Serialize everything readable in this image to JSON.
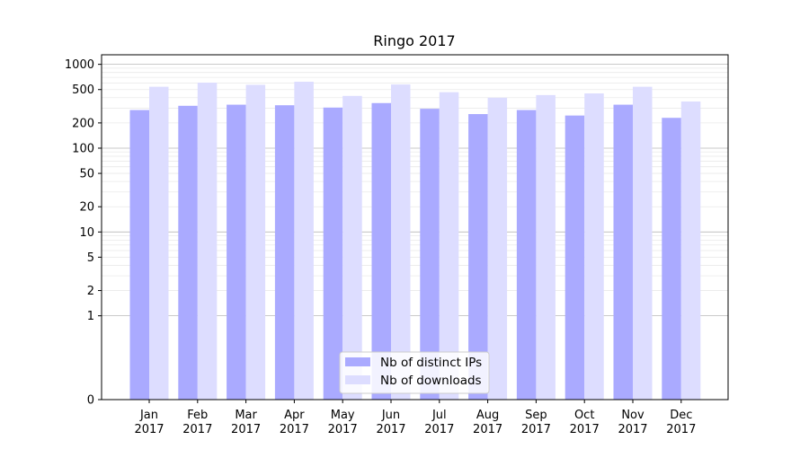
{
  "chart_data": {
    "type": "bar",
    "title": "Ringo 2017",
    "xlabel": "",
    "ylabel": "",
    "y_scale": "symlog",
    "ylim": [
      0,
      1300
    ],
    "y_ticks": [
      0,
      1,
      2,
      5,
      10,
      20,
      50,
      100,
      200,
      500,
      1000
    ],
    "y_tick_labels": [
      "0",
      "1",
      "2",
      "5",
      "10",
      "20",
      "50",
      "100",
      "200",
      "500",
      "1000"
    ],
    "grid": true,
    "legend_position": "bottom-center",
    "categories": [
      "Jan\n2017",
      "Feb\n2017",
      "Mar\n2017",
      "Apr\n2017",
      "May\n2017",
      "Jun\n2017",
      "Jul\n2017",
      "Aug\n2017",
      "Sep\n2017",
      "Oct\n2017",
      "Nov\n2017",
      "Dec\n2017"
    ],
    "category_lines": [
      [
        "Jan",
        "2017"
      ],
      [
        "Feb",
        "2017"
      ],
      [
        "Mar",
        "2017"
      ],
      [
        "Apr",
        "2017"
      ],
      [
        "May",
        "2017"
      ],
      [
        "Jun",
        "2017"
      ],
      [
        "Jul",
        "2017"
      ],
      [
        "Aug",
        "2017"
      ],
      [
        "Sep",
        "2017"
      ],
      [
        "Oct",
        "2017"
      ],
      [
        "Nov",
        "2017"
      ],
      [
        "Dec",
        "2017"
      ]
    ],
    "series": [
      {
        "name": "Nb of distinct IPs",
        "color": "#aaaaff",
        "values": [
          285,
          320,
          330,
          325,
          305,
          345,
          295,
          255,
          285,
          245,
          330,
          230
        ]
      },
      {
        "name": "Nb of downloads",
        "color": "#ddddff",
        "values": [
          540,
          605,
          570,
          620,
          420,
          575,
          465,
          400,
          430,
          450,
          540,
          360
        ]
      }
    ]
  }
}
